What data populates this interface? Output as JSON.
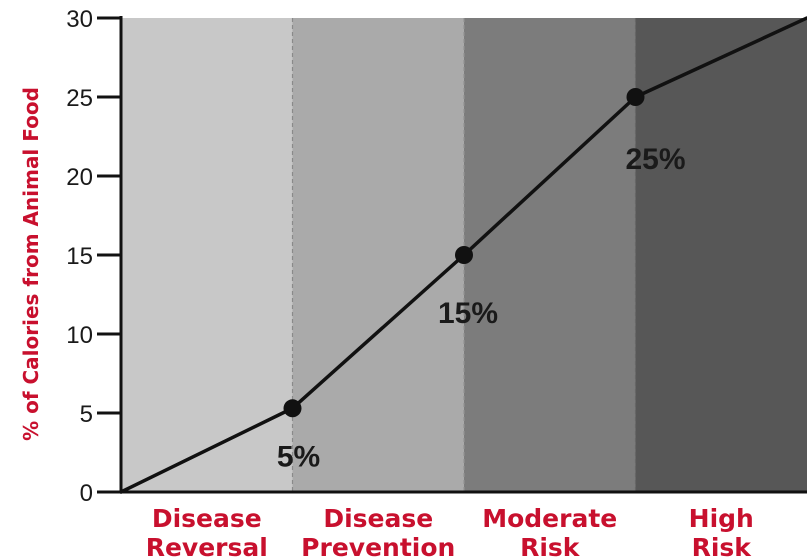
{
  "chart_data": {
    "type": "line",
    "xlabel": "",
    "ylabel": "% of Calories from Animal Food",
    "ylim": [
      0,
      30
    ],
    "yticks": [
      "0",
      "5",
      "10",
      "15",
      "20",
      "25",
      "30"
    ],
    "grid": false,
    "categories": [
      "Disease Reversal",
      "Disease Prevention",
      "Moderate Risk",
      "High Risk"
    ],
    "category_labels": [
      {
        "line1": "Disease",
        "line2": "Reversal"
      },
      {
        "line1": "Disease",
        "line2": "Prevention"
      },
      {
        "line1": "Moderate",
        "line2": "Risk"
      },
      {
        "line1": "High",
        "line2": "Risk"
      }
    ],
    "series": [
      {
        "points": [
          {
            "x": 0,
            "y": 0
          },
          {
            "x": 1,
            "y": 5.3,
            "marker": true,
            "label": "5%"
          },
          {
            "x": 2,
            "y": 15,
            "marker": true,
            "label": "15%"
          },
          {
            "x": 3,
            "y": 25,
            "marker": true,
            "label": "25%"
          },
          {
            "x": 4,
            "y": 30
          }
        ]
      }
    ],
    "colors": {
      "band_fills": [
        "#c8c8c8",
        "#aaaaaa",
        "#7c7c7c",
        "#575757"
      ],
      "label_color": "#c8102e",
      "line_color": "#111111",
      "axis_color": "#111111"
    }
  }
}
